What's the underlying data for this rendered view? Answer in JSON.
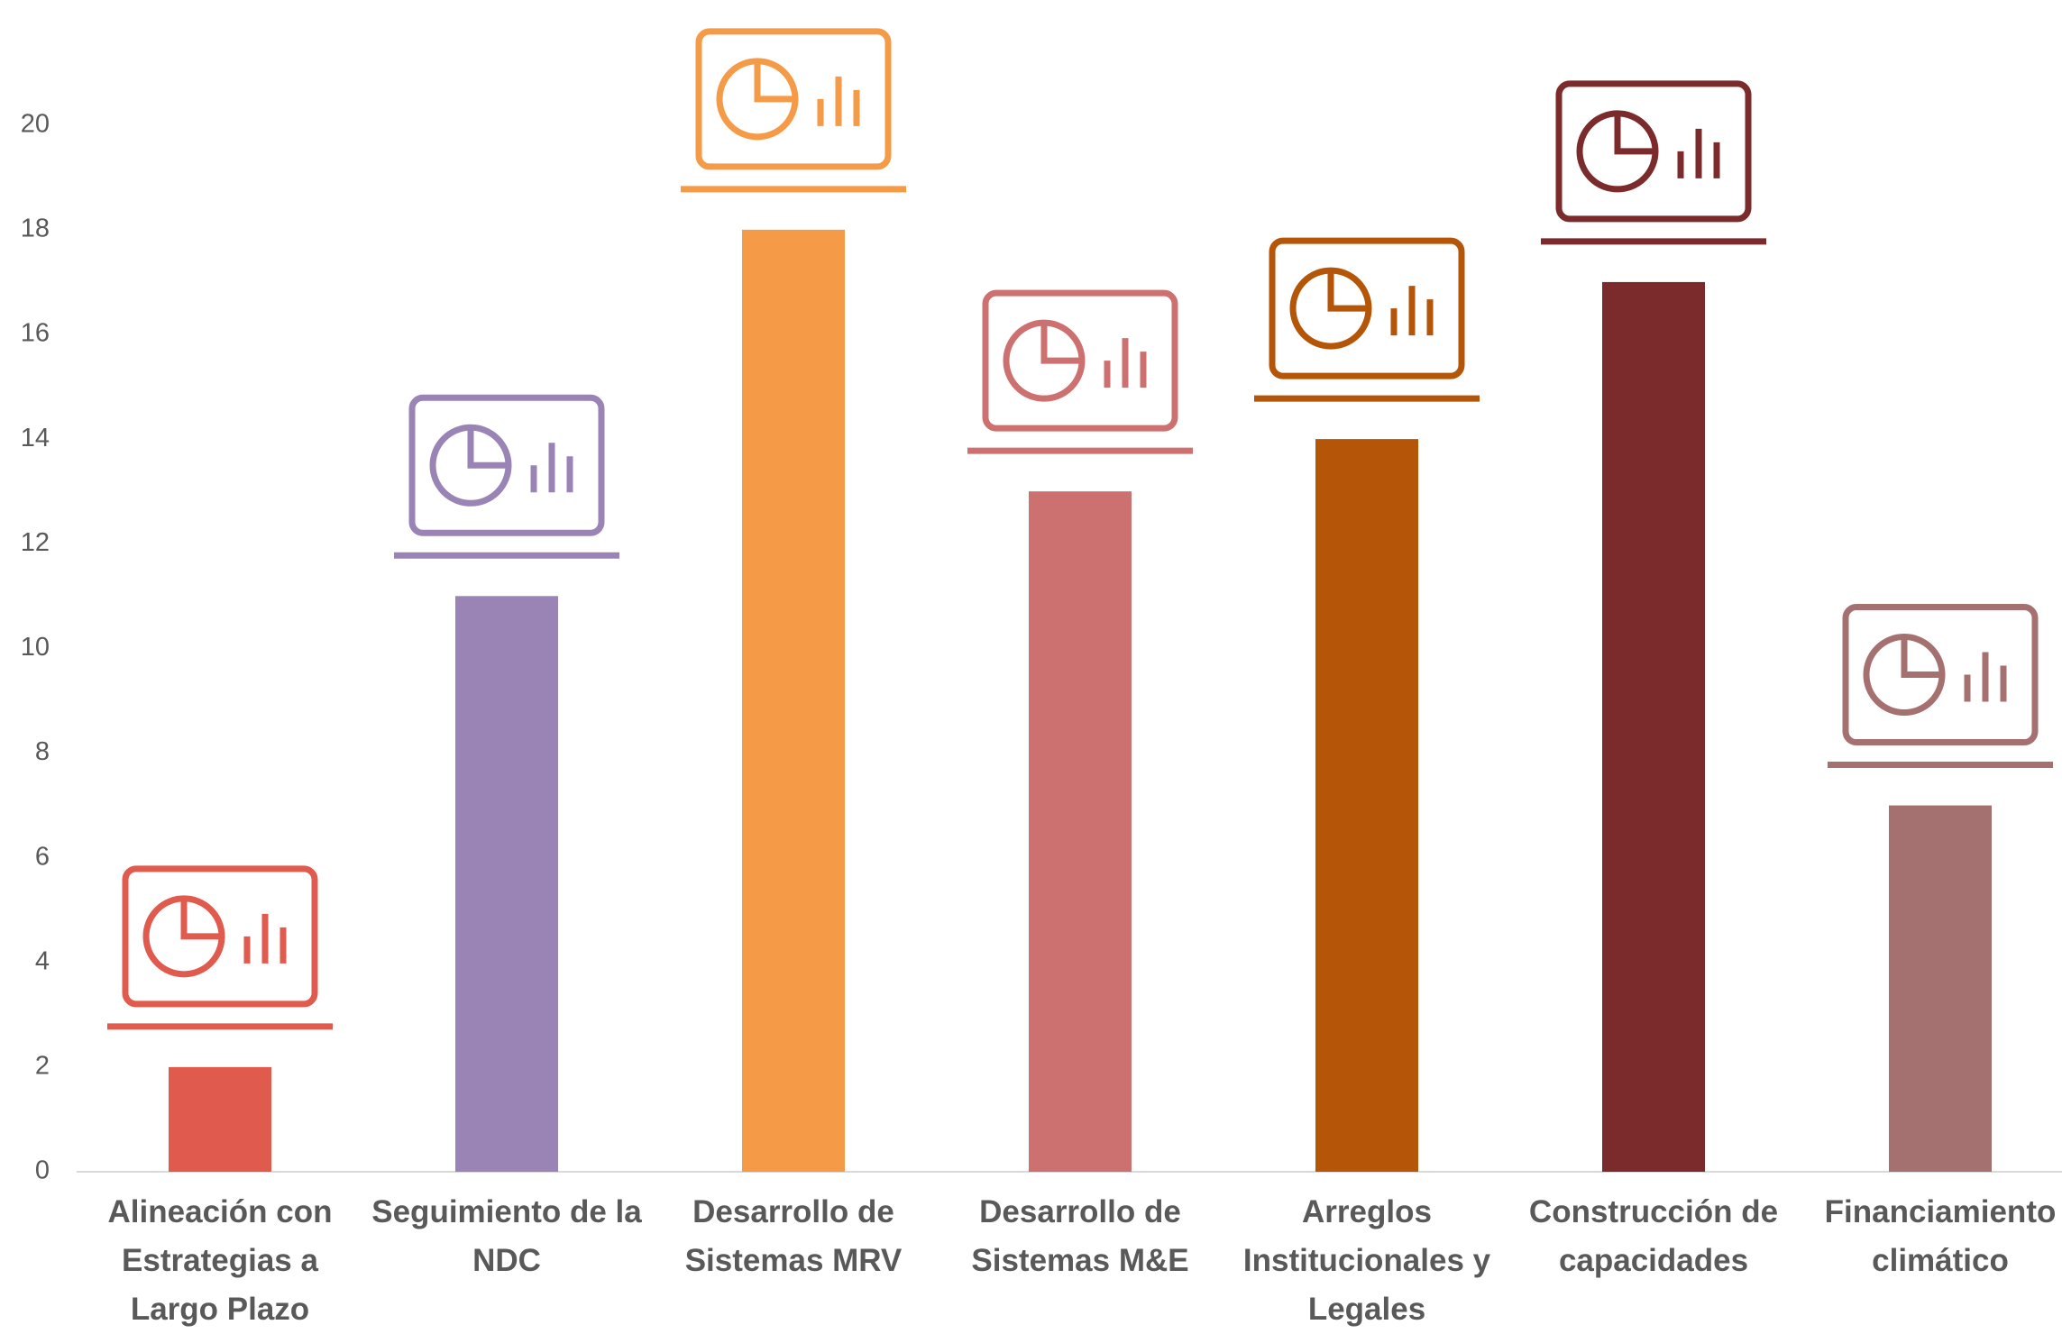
{
  "chart_data": {
    "type": "bar",
    "categories": [
      "Alineación con Estrategias a Largo Plazo",
      "Seguimiento de la NDC",
      "Desarrollo de Sistemas MRV",
      "Desarrollo de Sistemas M&E",
      "Arreglos Institucionales y Legales",
      "Construcción de capacidades",
      "Financiamiento climático"
    ],
    "values": [
      2,
      11,
      18,
      13,
      14,
      17,
      7
    ],
    "colors": [
      "#e05a4e",
      "#9a84b5",
      "#f59a47",
      "#cd7170",
      "#b55508",
      "#7b2b2b",
      "#a47170"
    ],
    "ylim": [
      0,
      22
    ],
    "yticks": [
      0,
      2,
      4,
      6,
      8,
      10,
      12,
      14,
      16,
      18,
      20
    ],
    "grid": false
  }
}
